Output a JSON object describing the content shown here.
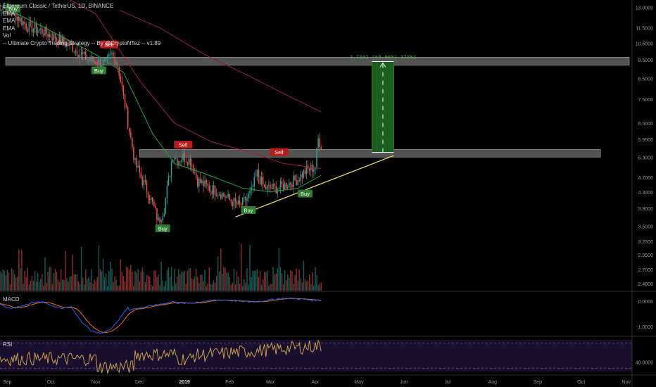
{
  "legend": {
    "title": "Ethereum Classic / TetherUS, 1D, BINANCE",
    "lines": [
      "EMA",
      "EMA",
      "EMA",
      "Vol",
      "-- Ultimate Crypto Trading Strategy -- By @CryptoNTez -- v1.89"
    ]
  },
  "panes": {
    "macd": "MACD",
    "rsi": "RSI"
  },
  "measure_label": "3.7361 (68.658) 37361",
  "colors": {
    "bull": "#26a69a",
    "bear": "#ef5350",
    "ema_fast": "#1e9e3e",
    "ema_mid": "#a0213a",
    "ema_slow": "#8e1e33",
    "trend": "#f0e050",
    "zone": "#808080",
    "target": "#1b5e20",
    "macd": "#2962ff",
    "signal": "#ff6d00",
    "rsi": "#c9a24a",
    "rsi_bg": "#1a0f2e"
  },
  "chart_data": {
    "type": "candlestick",
    "symbol": "ETCUSDT",
    "x_ticks": [
      "Sep",
      "Oct",
      "Nov",
      "Dec",
      "2019",
      "Feb",
      "Mar",
      "Apr",
      "May",
      "Jun",
      "Jul",
      "Aug",
      "Sep",
      "Oct",
      "Nov"
    ],
    "y_scale": "log",
    "y_ticks": [
      "13.0000",
      "11.5000",
      "10.5000",
      "9.5000",
      "8.5000",
      "7.5000",
      "6.5000",
      "5.9000",
      "5.3000",
      "4.7000",
      "4.3000",
      "3.9000",
      "3.5000",
      "3.2000",
      "2.9500",
      "2.7000",
      "2.4800"
    ],
    "macd_ticks": [
      "0.0000",
      "-1.0000"
    ],
    "rsi_ticks": [
      "40.0000"
    ],
    "price_path": [
      [
        "2018-08-25",
        13.2
      ],
      [
        "2018-09-05",
        12.6
      ],
      [
        "2018-09-15",
        11.6
      ],
      [
        "2018-09-25",
        11.3
      ],
      [
        "2018-10-05",
        10.8
      ],
      [
        "2018-10-15",
        10.3
      ],
      [
        "2018-10-25",
        9.6
      ],
      [
        "2018-11-01",
        9.4
      ],
      [
        "2018-11-08",
        9.3
      ],
      [
        "2018-11-12",
        9.8
      ],
      [
        "2018-11-16",
        9.2
      ],
      [
        "2018-11-20",
        7.6
      ],
      [
        "2018-11-24",
        6.2
      ],
      [
        "2018-11-28",
        5.1
      ],
      [
        "2018-12-03",
        4.6
      ],
      [
        "2018-12-08",
        4.2
      ],
      [
        "2018-12-14",
        3.6
      ],
      [
        "2018-12-18",
        3.9
      ],
      [
        "2018-12-21",
        4.6
      ],
      [
        "2018-12-24",
        5.4
      ],
      [
        "2018-12-27",
        5.2
      ],
      [
        "2018-12-31",
        5.3
      ],
      [
        "2019-01-05",
        5.2
      ],
      [
        "2019-01-10",
        4.6
      ],
      [
        "2019-01-18",
        4.4
      ],
      [
        "2019-01-25",
        4.3
      ],
      [
        "2019-02-01",
        4.1
      ],
      [
        "2019-02-08",
        3.95
      ],
      [
        "2019-02-12",
        4.1
      ],
      [
        "2019-02-16",
        4.3
      ],
      [
        "2019-02-20",
        4.8
      ],
      [
        "2019-02-25",
        4.4
      ],
      [
        "2019-03-05",
        4.4
      ],
      [
        "2019-03-12",
        4.5
      ],
      [
        "2019-03-20",
        4.65
      ],
      [
        "2019-03-26",
        4.9
      ],
      [
        "2019-04-01",
        5.0
      ],
      [
        "2019-04-03",
        5.9
      ],
      [
        "2019-04-05",
        5.7
      ]
    ],
    "ema_fast": [
      [
        "2018-08-25",
        13.3
      ],
      [
        "2018-10-01",
        11.3
      ],
      [
        "2018-11-01",
        9.8
      ],
      [
        "2018-11-20",
        8.8
      ],
      [
        "2018-12-10",
        6.1
      ],
      [
        "2018-12-25",
        5.1
      ],
      [
        "2019-01-15",
        4.8
      ],
      [
        "2019-02-10",
        4.4
      ],
      [
        "2019-03-01",
        4.3
      ],
      [
        "2019-03-20",
        4.4
      ],
      [
        "2019-04-05",
        4.75
      ]
    ],
    "ema_mid": [
      [
        "2018-08-25",
        16.5
      ],
      [
        "2018-10-01",
        14.5
      ],
      [
        "2018-11-01",
        12.5
      ],
      [
        "2018-12-01",
        8.4
      ],
      [
        "2018-12-25",
        6.5
      ],
      [
        "2019-01-20",
        5.8
      ],
      [
        "2019-02-20",
        5.4
      ],
      [
        "2019-03-10",
        5.1
      ],
      [
        "2019-04-05",
        4.95
      ]
    ],
    "ema_slow": [
      [
        "2018-11-17",
        12.8
      ],
      [
        "2018-12-15",
        11.5
      ],
      [
        "2019-01-15",
        9.8
      ],
      [
        "2019-02-15",
        8.6
      ],
      [
        "2019-03-15",
        7.6
      ],
      [
        "2019-04-05",
        6.95
      ]
    ],
    "signals": [
      {
        "date": "2018-09-05",
        "price": 12.9,
        "label": "Buy",
        "side": "buy"
      },
      {
        "date": "2018-11-10",
        "price": 10.4,
        "label": "Sell",
        "side": "sell"
      },
      {
        "date": "2018-11-03",
        "price": 8.9,
        "label": "Buy",
        "side": "buy"
      },
      {
        "date": "2018-12-17",
        "price": 3.45,
        "label": "Buy",
        "side": "buy"
      },
      {
        "date": "2018-12-31",
        "price": 5.7,
        "label": "Sell",
        "side": "sell"
      },
      {
        "date": "2019-02-14",
        "price": 3.85,
        "label": "Buy",
        "side": "buy"
      },
      {
        "date": "2019-03-07",
        "price": 5.45,
        "label": "Sell",
        "side": "sell"
      },
      {
        "date": "2019-03-25",
        "price": 4.25,
        "label": "Buy",
        "side": "buy"
      }
    ],
    "zones": [
      {
        "name": "resistance",
        "from": 9.2,
        "to": 9.65
      },
      {
        "name": "support",
        "from": 5.3,
        "to": 5.55
      }
    ],
    "trendline": [
      [
        "2019-02-05",
        3.7
      ],
      [
        "2019-05-25",
        5.35
      ]
    ],
    "target_box": {
      "x0": "2019-05-10",
      "x1": "2019-05-25",
      "from": 5.45,
      "to": 9.4
    }
  }
}
